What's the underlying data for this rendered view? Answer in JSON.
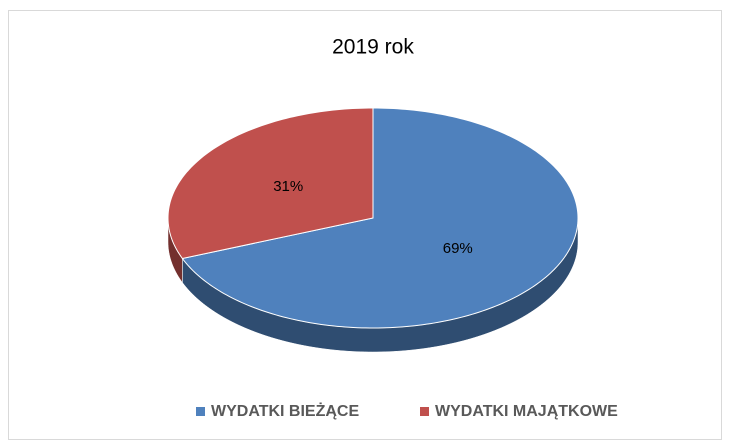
{
  "chart_data": {
    "type": "pie",
    "title": "2019 rok",
    "categories": [
      "WYDATKI BIEŻĄCE",
      "WYDATKI MAJĄTKOWE"
    ],
    "values": [
      69,
      31
    ],
    "value_labels": [
      "69%",
      "31%"
    ],
    "colors": [
      "#4f81bd",
      "#c0504d"
    ],
    "legend": "bottom"
  }
}
